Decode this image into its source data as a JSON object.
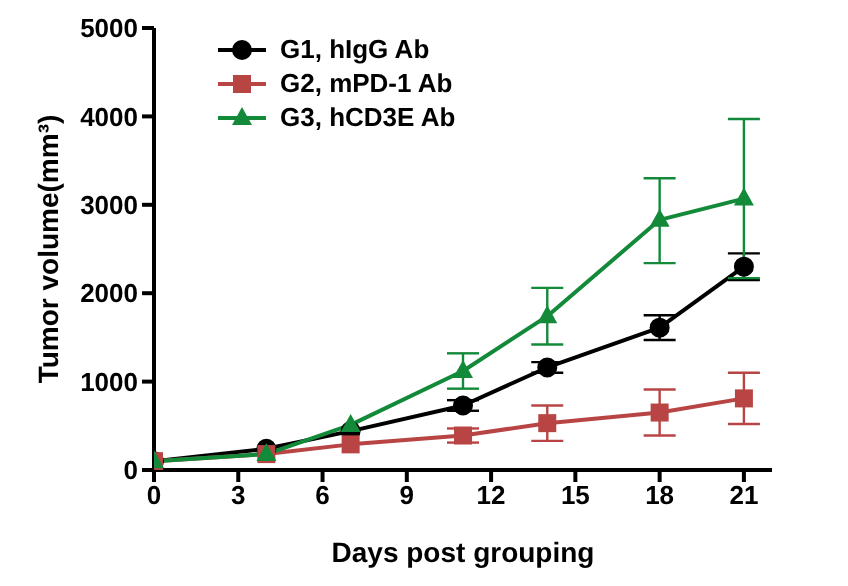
{
  "chart_data": {
    "type": "line",
    "xlabel": "Days post grouping",
    "ylabel": "Tumor volume(mm³)",
    "xlim": [
      0,
      22
    ],
    "xticks": [
      0,
      3,
      6,
      9,
      12,
      15,
      18,
      21
    ],
    "ylim": [
      0,
      5000
    ],
    "yticks": [
      0,
      1000,
      2000,
      3000,
      4000,
      5000
    ],
    "grid": false,
    "legend": "top left",
    "line_style": "solid",
    "series": [
      {
        "name": "G1, hIgG Ab",
        "color": "#000000",
        "marker": "circle",
        "x": [
          0,
          4,
          7,
          11,
          14,
          18,
          21
        ],
        "values": [
          100,
          240,
          440,
          730,
          1160,
          1610,
          2300
        ],
        "errors": [
          null,
          null,
          null,
          60,
          60,
          140,
          150
        ]
      },
      {
        "name": "G2, mPD-1 Ab",
        "color": "#b84444",
        "marker": "square",
        "x": [
          0,
          4,
          7,
          11,
          14,
          18,
          21
        ],
        "values": [
          100,
          180,
          290,
          390,
          530,
          650,
          810
        ],
        "errors": [
          null,
          null,
          null,
          80,
          200,
          260,
          290
        ]
      },
      {
        "name": "G3, hCD3E Ab",
        "color": "#138a3a",
        "marker": "triangle",
        "x": [
          0,
          4,
          7,
          11,
          14,
          18,
          21
        ],
        "values": [
          100,
          180,
          510,
          1120,
          1740,
          2830,
          3070
        ],
        "errors": [
          null,
          null,
          null,
          200,
          320,
          [
            2340,
            3300
          ],
          900
        ]
      }
    ]
  }
}
